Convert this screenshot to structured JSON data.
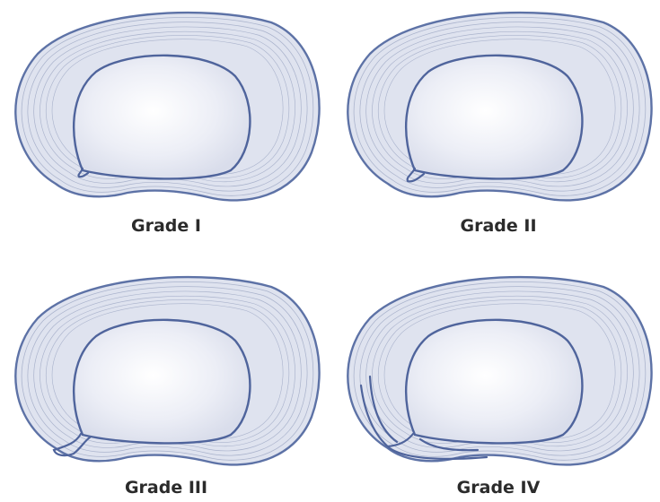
{
  "panels": [
    {
      "label": "Grade I"
    },
    {
      "label": "Grade II"
    },
    {
      "label": "Grade III"
    },
    {
      "label": "Grade IV"
    }
  ]
}
